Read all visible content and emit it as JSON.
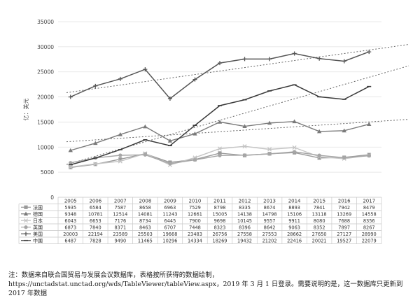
{
  "chart_data": {
    "type": "line",
    "ylabel": "亿：美元",
    "ylim": [
      0,
      35000
    ],
    "yticks": [
      0,
      5000,
      10000,
      15000,
      20000,
      25000,
      30000,
      35000
    ],
    "x": [
      "2005",
      "2006",
      "2007",
      "2008",
      "2009",
      "2010",
      "2011",
      "2012",
      "2013",
      "2014",
      "2015",
      "2016",
      "2017"
    ],
    "grid": "horizontal",
    "trendlines": "dotted linear trend for 美国, 中国, 德国",
    "series": [
      {
        "name": "法国",
        "marker": "square",
        "color": "#9a9a9a",
        "values": [
          5935,
          6584,
          7587,
          8658,
          6963,
          7529,
          8798,
          8335,
          8674,
          8893,
          7841,
          7942,
          8479
        ]
      },
      {
        "name": "德国",
        "marker": "triangle",
        "color": "#7a7a7a",
        "values": [
          9348,
          10781,
          12514,
          14081,
          11243,
          12661,
          15005,
          14138,
          14798,
          15106,
          13118,
          13269,
          14558
        ]
      },
      {
        "name": "日本",
        "marker": "cross",
        "color": "#c4c4c4",
        "values": [
          6043,
          6653,
          7176,
          8734,
          6445,
          7900,
          9698,
          10145,
          9557,
          9911,
          8080,
          7688,
          8356
        ]
      },
      {
        "name": "英国",
        "marker": "circle",
        "color": "#a6a6a6",
        "values": [
          6873,
          7840,
          8371,
          8463,
          6707,
          7448,
          8323,
          8396,
          8642,
          9063,
          8352,
          7897,
          8267
        ]
      },
      {
        "name": "美国",
        "marker": "plus",
        "color": "#555555",
        "values": [
          20003,
          22194,
          23589,
          25503,
          19668,
          23483,
          26756,
          27558,
          27553,
          28662,
          27650,
          27127,
          28990
        ]
      },
      {
        "name": "中国",
        "marker": "dash",
        "color": "#3a3a3a",
        "values": [
          6487,
          7828,
          9490,
          11465,
          10296,
          14334,
          18269,
          19432,
          21202,
          22416,
          20021,
          19527,
          22079
        ]
      }
    ]
  },
  "footnote": "注：数据来自联合国贸易与发展会议数据库，表格按所获得的数据绘制，https://unctadstat.unctad.org/wds/TableViewer/tableView.aspx，2019 年 3 月 1 日登录。需要说明的是，这一数据库只更新到 2017 年数据"
}
